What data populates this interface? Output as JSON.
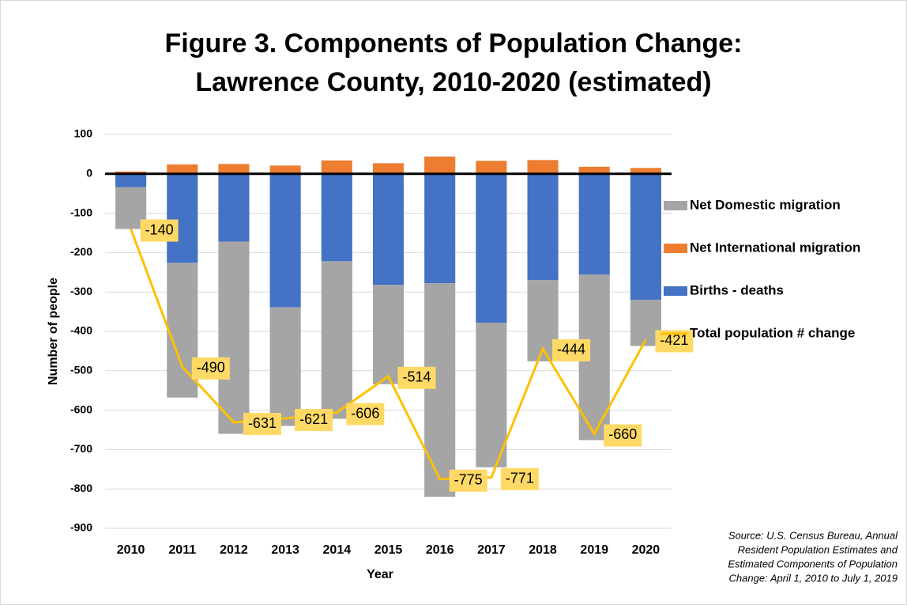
{
  "chart_data": {
    "type": "bar",
    "title": [
      "Figure 3. Components of Population Change:",
      "Lawrence County, 2010-2020 (estimated)"
    ],
    "x_label": "Year",
    "y_label": "Number of people",
    "source": [
      "Source: U.S. Census Bureau, Annual",
      "Resident Population Estimates and",
      "Estimated Components of Population",
      "Change: April 1, 2010 to July 1, 2019"
    ],
    "categories": [
      "2010",
      "2011",
      "2012",
      "2013",
      "2014",
      "2015",
      "2016",
      "2017",
      "2018",
      "2019",
      "2020"
    ],
    "series": [
      {
        "name": "Births - deaths",
        "color": "#4472c4",
        "type": "bar",
        "values": [
          -34,
          -226,
          -172,
          -339,
          -222,
          -282,
          -278,
          -378,
          -270,
          -256,
          -320
        ]
      },
      {
        "name": "Net International migration",
        "color": "#ed7d31",
        "type": "bar",
        "values": [
          6,
          24,
          25,
          21,
          34,
          27,
          44,
          33,
          35,
          18,
          15
        ]
      },
      {
        "name": "Net Domestic migration",
        "color": "#a5a5a5",
        "type": "bar",
        "values": [
          -106,
          -342,
          -488,
          -301,
          -400,
          -252,
          -542,
          -367,
          -206,
          -420,
          -117
        ]
      },
      {
        "name": "Total population # change",
        "color": "#ffc000",
        "type": "line",
        "values": [
          -140,
          -490,
          -631,
          -621,
          -606,
          -514,
          -775,
          -771,
          -444,
          -660,
          -421
        ]
      }
    ],
    "ylim": [
      -900,
      100
    ],
    "yticks": [
      100,
      0,
      -100,
      -200,
      -300,
      -400,
      -500,
      -600,
      -700,
      -800,
      -900
    ],
    "grid": true,
    "legend": "right"
  }
}
